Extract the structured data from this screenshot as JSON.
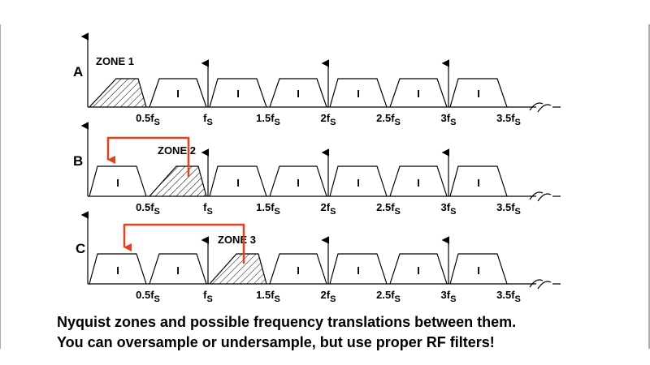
{
  "panels": [
    {
      "label": "A",
      "zone": "ZONE 1",
      "ticks": [
        {
          "base": "0.5f",
          "sub": "S"
        },
        {
          "base": "f",
          "sub": "S"
        },
        {
          "base": "1.5f",
          "sub": "S"
        },
        {
          "base": "2f",
          "sub": "S"
        },
        {
          "base": "2.5f",
          "sub": "S"
        },
        {
          "base": "3f",
          "sub": "S"
        },
        {
          "base": "3.5f",
          "sub": "S"
        }
      ],
      "image_labels": [
        "I",
        "I",
        "I",
        "I",
        "I",
        "I"
      ]
    },
    {
      "label": "B",
      "zone": "ZONE 2",
      "ticks": [
        {
          "base": "0.5f",
          "sub": "S"
        },
        {
          "base": "f",
          "sub": "S"
        },
        {
          "base": "1.5f",
          "sub": "S"
        },
        {
          "base": "2f",
          "sub": "S"
        },
        {
          "base": "2.5f",
          "sub": "S"
        },
        {
          "base": "3f",
          "sub": "S"
        },
        {
          "base": "3.5f",
          "sub": "S"
        }
      ],
      "image_labels": [
        "I",
        "I",
        "I",
        "I",
        "I",
        "I"
      ]
    },
    {
      "label": "C",
      "zone": "ZONE 3",
      "ticks": [
        {
          "base": "0.5f",
          "sub": "S"
        },
        {
          "base": "f",
          "sub": "S"
        },
        {
          "base": "1.5f",
          "sub": "S"
        },
        {
          "base": "2f",
          "sub": "S"
        },
        {
          "base": "2.5f",
          "sub": "S"
        },
        {
          "base": "3f",
          "sub": "S"
        },
        {
          "base": "3.5f",
          "sub": "S"
        }
      ],
      "image_labels": [
        "I",
        "I",
        "I",
        "I",
        "I",
        "I"
      ]
    }
  ],
  "caption": [
    "Nyquist zones and possible frequency translations between them.",
    "You can oversample or undersample, but use proper RF filters!"
  ]
}
